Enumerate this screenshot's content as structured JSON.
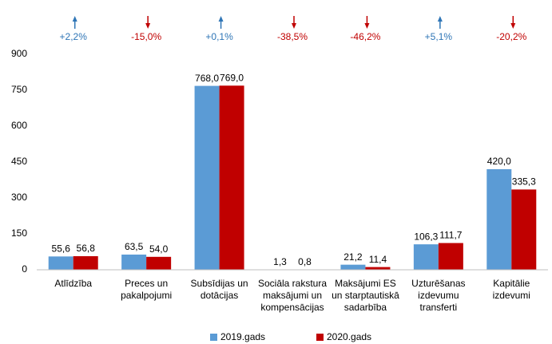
{
  "chart_data": {
    "type": "bar",
    "categories": [
      [
        "Atlīdzība"
      ],
      [
        "Preces un",
        "pakalpojumi"
      ],
      [
        "Subsīdijas un",
        "dotācijas"
      ],
      [
        "Sociāla rakstura",
        "maksājumi un",
        "kompensācijas"
      ],
      [
        "Maksājumi ES",
        "un starptautiskā",
        "sadarbība"
      ],
      [
        "Uzturēšanas",
        "izdevumu",
        "transferti"
      ],
      [
        "Kapitālie",
        "izdevumi"
      ]
    ],
    "series": [
      {
        "name": "2019.gads",
        "color": "#5b9bd5",
        "values": [
          55.6,
          63.5,
          768.0,
          1.3,
          21.2,
          106.3,
          420.0
        ],
        "value_labels": [
          "55,6",
          "63,5",
          "768,0",
          "1,3",
          "21,2",
          "106,3",
          "420,0"
        ]
      },
      {
        "name": "2020.gads",
        "color": "#c00000",
        "values": [
          56.8,
          54.0,
          769.0,
          0.8,
          11.4,
          111.7,
          335.3
        ],
        "value_labels": [
          "56,8",
          "54,0",
          "769,0",
          "0,8",
          "11,4",
          "111,7",
          "335,3"
        ]
      }
    ],
    "annotations": [
      {
        "value": 2.2,
        "label": "+2,2%"
      },
      {
        "value": -15.0,
        "label": "-15,0%"
      },
      {
        "value": 0.1,
        "label": "+0,1%"
      },
      {
        "value": -38.5,
        "label": "-38,5%"
      },
      {
        "value": -46.2,
        "label": "-46,2%"
      },
      {
        "value": 5.1,
        "label": "+5,1%"
      },
      {
        "value": -20.2,
        "label": "-20,2%"
      }
    ],
    "up_color": "#2e75b6",
    "down_color": "#c00000",
    "ylim": [
      0,
      900
    ],
    "yticks": [
      0,
      150,
      300,
      450,
      600,
      750,
      900
    ],
    "grid": false,
    "legend": "bottom"
  }
}
